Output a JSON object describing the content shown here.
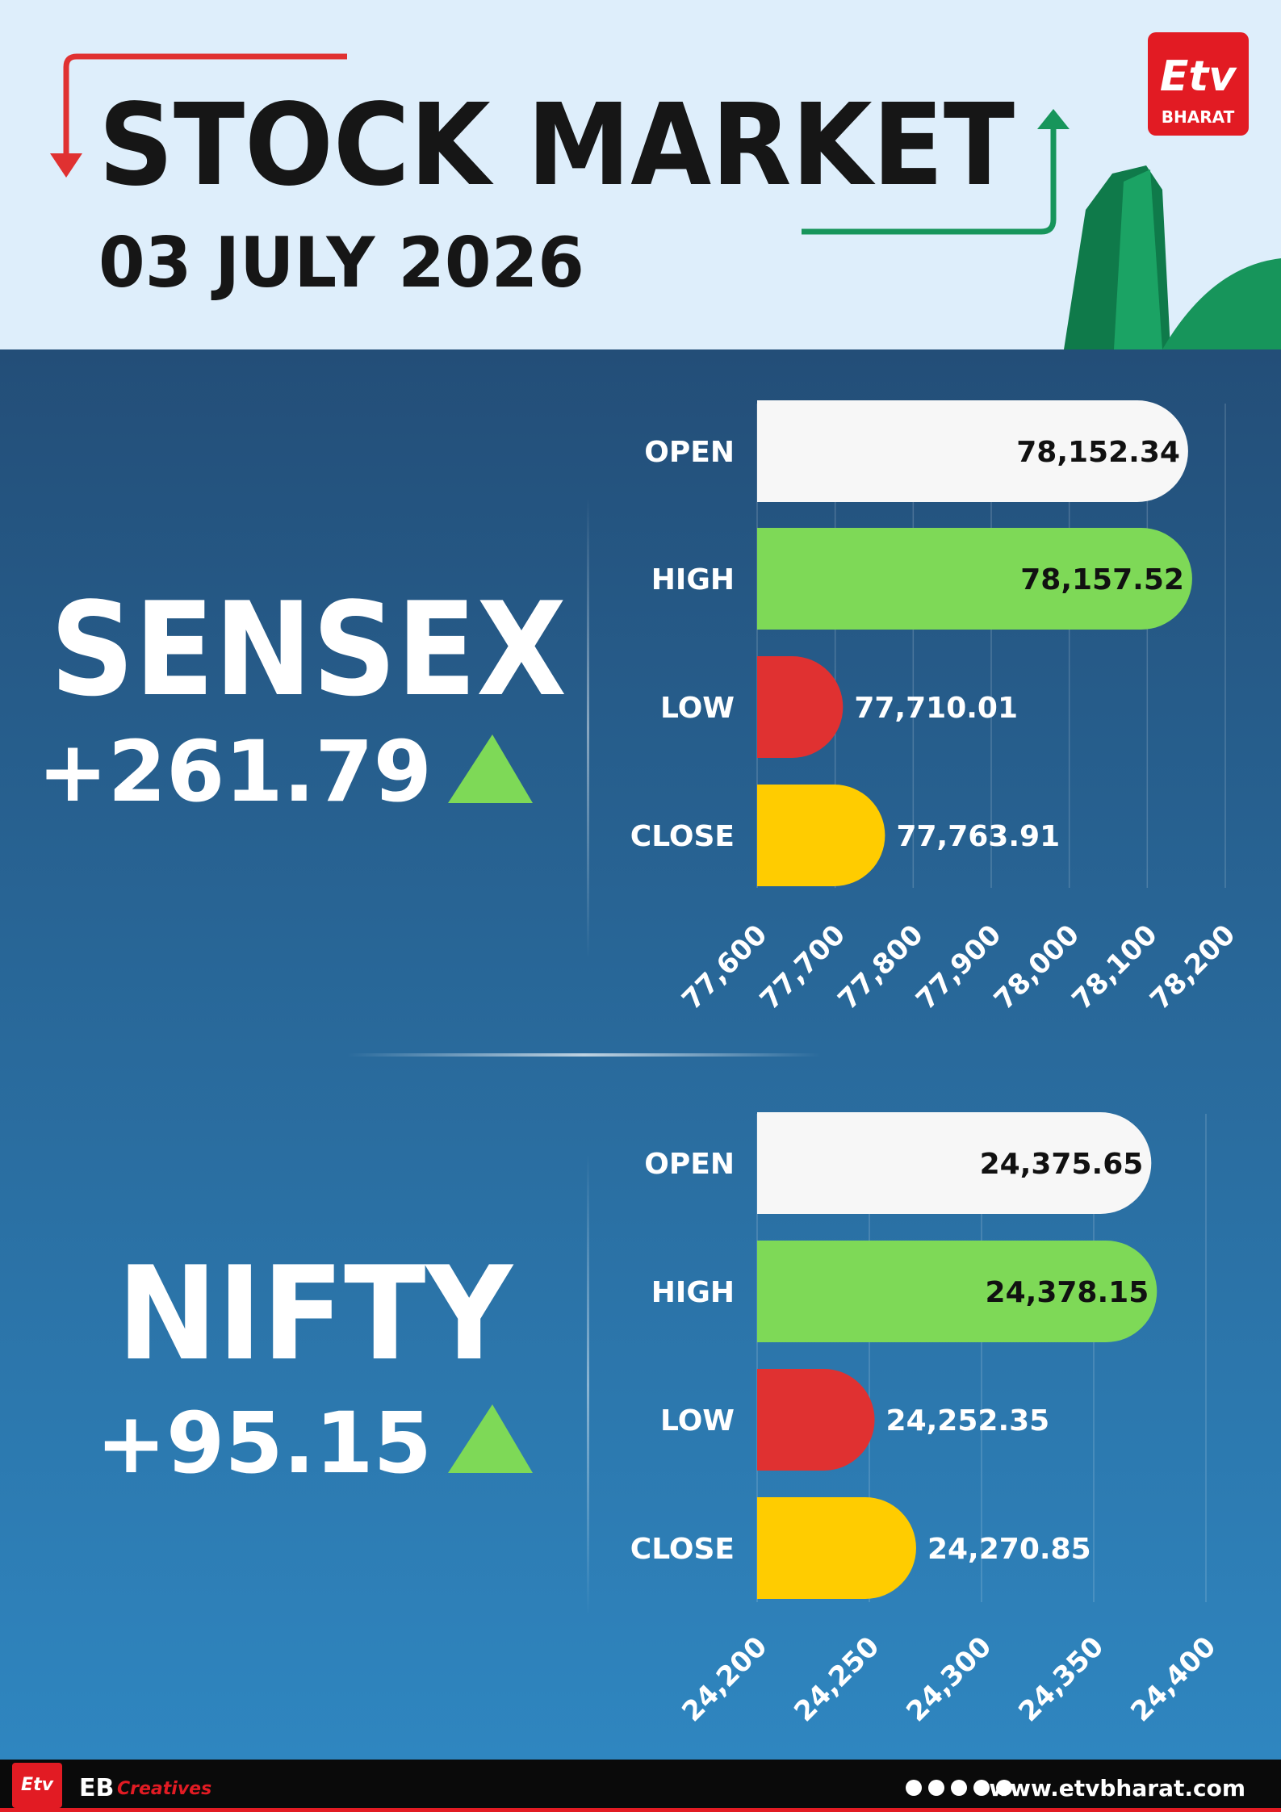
{
  "header": {
    "title": "STOCK MARKET",
    "date": "03 JULY 2026",
    "logo": "BHARAT"
  },
  "chart_data": [
    {
      "type": "bar",
      "title": "SENSEX",
      "change": "+261.79",
      "categories": [
        "OPEN",
        "HIGH",
        "LOW",
        "CLOSE"
      ],
      "values": [
        78152.34,
        78157.52,
        77710.01,
        77763.91
      ],
      "value_labels": [
        "78,152.34",
        "78,157.52",
        "77,710.01",
        "77,763.91"
      ],
      "colors": [
        "#f7f7f7",
        "#7ed957",
        "#e03131",
        "#ffcc00"
      ],
      "xlim": [
        77600,
        78200
      ],
      "xticks": [
        {
          "value": 77600,
          "label": "77,600"
        },
        {
          "value": 77700,
          "label": "77,700"
        },
        {
          "value": 77800,
          "label": "77,800"
        },
        {
          "value": 77900,
          "label": "77,900"
        },
        {
          "value": 78000,
          "label": "78,000"
        },
        {
          "value": 78100,
          "label": "78,100"
        },
        {
          "value": 78200,
          "label": "78,200"
        }
      ],
      "grid": true
    },
    {
      "type": "bar",
      "title": "NIFTY",
      "change": "+95.15",
      "categories": [
        "OPEN",
        "HIGH",
        "LOW",
        "CLOSE"
      ],
      "values": [
        24375.65,
        24378.15,
        24252.35,
        24270.85
      ],
      "value_labels": [
        "24,375.65",
        "24,378.15",
        "24,252.35",
        "24,270.85"
      ],
      "colors": [
        "#f7f7f7",
        "#7ed957",
        "#e03131",
        "#ffcc00"
      ],
      "xlim": [
        24200,
        24400
      ],
      "xticks": [
        {
          "value": 24200,
          "label": "24,200"
        },
        {
          "value": 24250,
          "label": "24,250"
        },
        {
          "value": 24300,
          "label": "24,300"
        },
        {
          "value": 24350,
          "label": "24,350"
        },
        {
          "value": 24400,
          "label": "24,400"
        }
      ],
      "grid": true
    }
  ],
  "footer": {
    "brand": "EB",
    "brand_suffix": "Creatives",
    "url": "www.etvbharat.com"
  }
}
